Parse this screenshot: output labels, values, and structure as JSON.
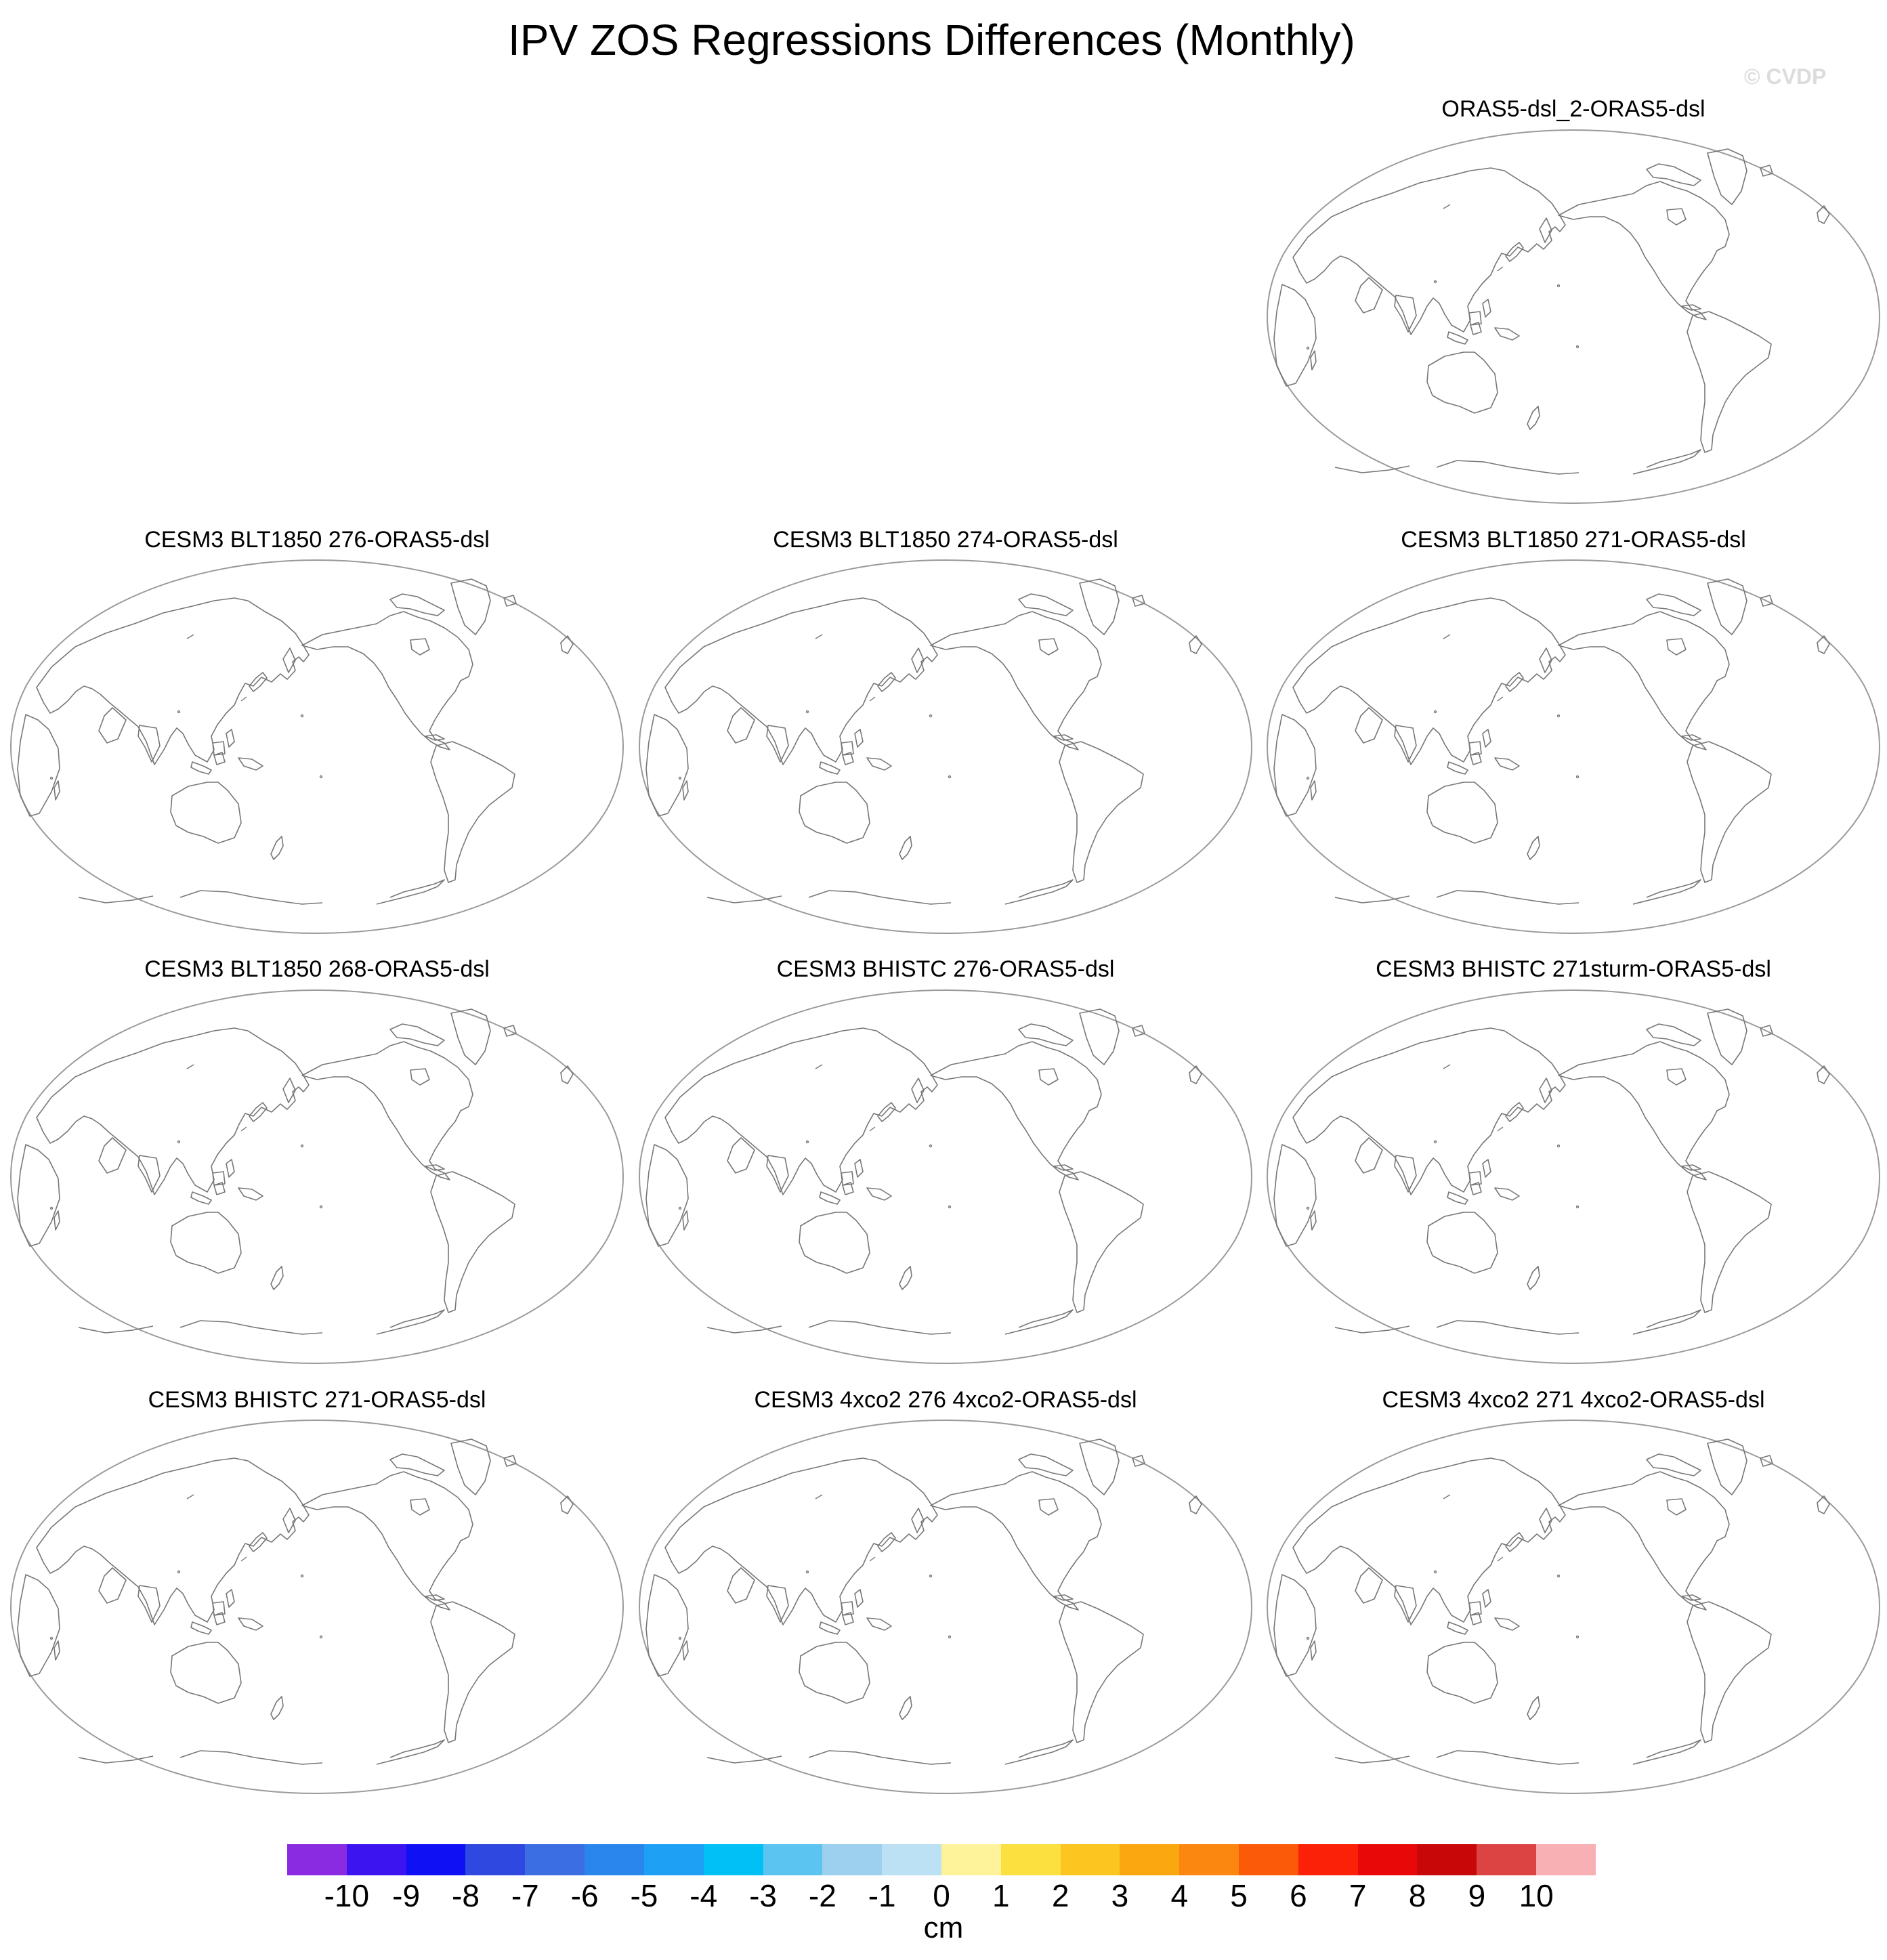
{
  "figure": {
    "title": "IPV ZOS Regressions Differences (Monthly)",
    "credit": "© CVDP"
  },
  "panels": [
    {
      "title": "ORAS5-dsl_2-ORAS5-dsl"
    },
    {
      "title": "CESM3 BLT1850 276-ORAS5-dsl"
    },
    {
      "title": "CESM3 BLT1850 274-ORAS5-dsl"
    },
    {
      "title": "CESM3 BLT1850 271-ORAS5-dsl"
    },
    {
      "title": "CESM3 BLT1850 268-ORAS5-dsl"
    },
    {
      "title": "CESM3 BHISTC 276-ORAS5-dsl"
    },
    {
      "title": "CESM3 BHISTC 271sturm-ORAS5-dsl"
    },
    {
      "title": "CESM3 BHISTC 271-ORAS5-dsl"
    },
    {
      "title": "CESM3 4xco2 276 4xco2-ORAS5-dsl"
    },
    {
      "title": "CESM3 4xco2 271 4xco2-ORAS5-dsl"
    }
  ],
  "colorbar": {
    "labels": [
      "-10",
      "-9",
      "-8",
      "-7",
      "-6",
      "-5",
      "-4",
      "-3",
      "-2",
      "-1",
      "0",
      "1",
      "2",
      "3",
      "4",
      "5",
      "6",
      "7",
      "8",
      "9",
      "10"
    ],
    "colors": [
      "#8a2be2",
      "#3c14f0",
      "#1010f5",
      "#2e48e0",
      "#3a6ee2",
      "#2a86ec",
      "#1ea0f5",
      "#00c0f5",
      "#5cc4f0",
      "#9cd0ee",
      "#bce0f4",
      "#fef39a",
      "#fce040",
      "#fcc520",
      "#fba810",
      "#fb8610",
      "#fb5a08",
      "#fb2008",
      "#e80808",
      "#c80808",
      "#dc4444",
      "#f8b0b4"
    ],
    "units": "cm"
  }
}
